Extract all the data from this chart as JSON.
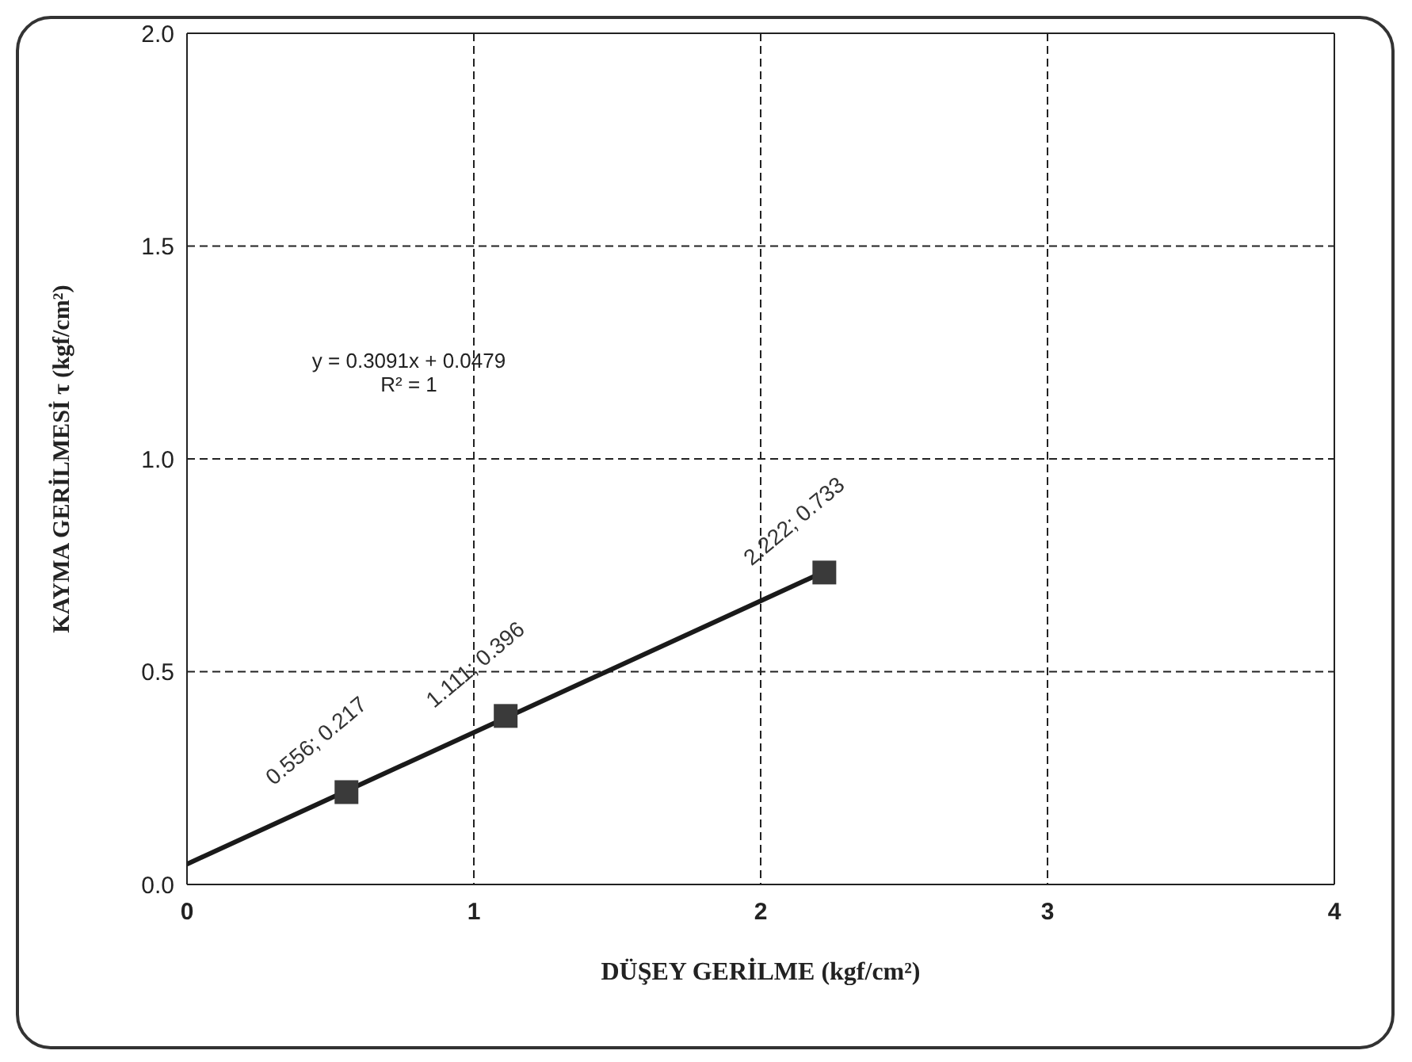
{
  "chart_data": {
    "type": "scatter",
    "xlabel": "DÜŞEY GERİLME     (kgf/cm²)",
    "ylabel": "KAYMA GERİLMESİ     τ  (kgf/cm²)",
    "annotations": [
      "y = 0.3091x + 0.0479",
      "R² = 1"
    ],
    "series": [
      {
        "type": "scatter",
        "x": [
          0.556,
          1.111,
          2.222
        ],
        "values": [
          0.217,
          0.396,
          0.733
        ],
        "color": "#3a3a3a",
        "marker": "square",
        "value_labels": [
          "0.556; 0.217",
          "1.111; 0.396",
          "2.222; 0.733"
        ]
      },
      {
        "type": "line",
        "x": [
          0,
          2.222
        ],
        "values": [
          0.048,
          0.735
        ],
        "color": "#1a1a1a",
        "marker": "none",
        "line_style": "solid"
      }
    ],
    "xlim": [
      0,
      4
    ],
    "xticks": [
      0,
      1,
      2,
      3,
      4
    ],
    "ylim": [
      0,
      2
    ],
    "yticks": [
      {
        "value": 0,
        "label": "0.0"
      },
      {
        "value": 0.5,
        "label": "0.5"
      },
      {
        "value": 1,
        "label": "1.0"
      },
      {
        "value": 1.5,
        "label": "1.5"
      },
      {
        "value": 2,
        "label": "2.0"
      }
    ],
    "grid": true
  }
}
